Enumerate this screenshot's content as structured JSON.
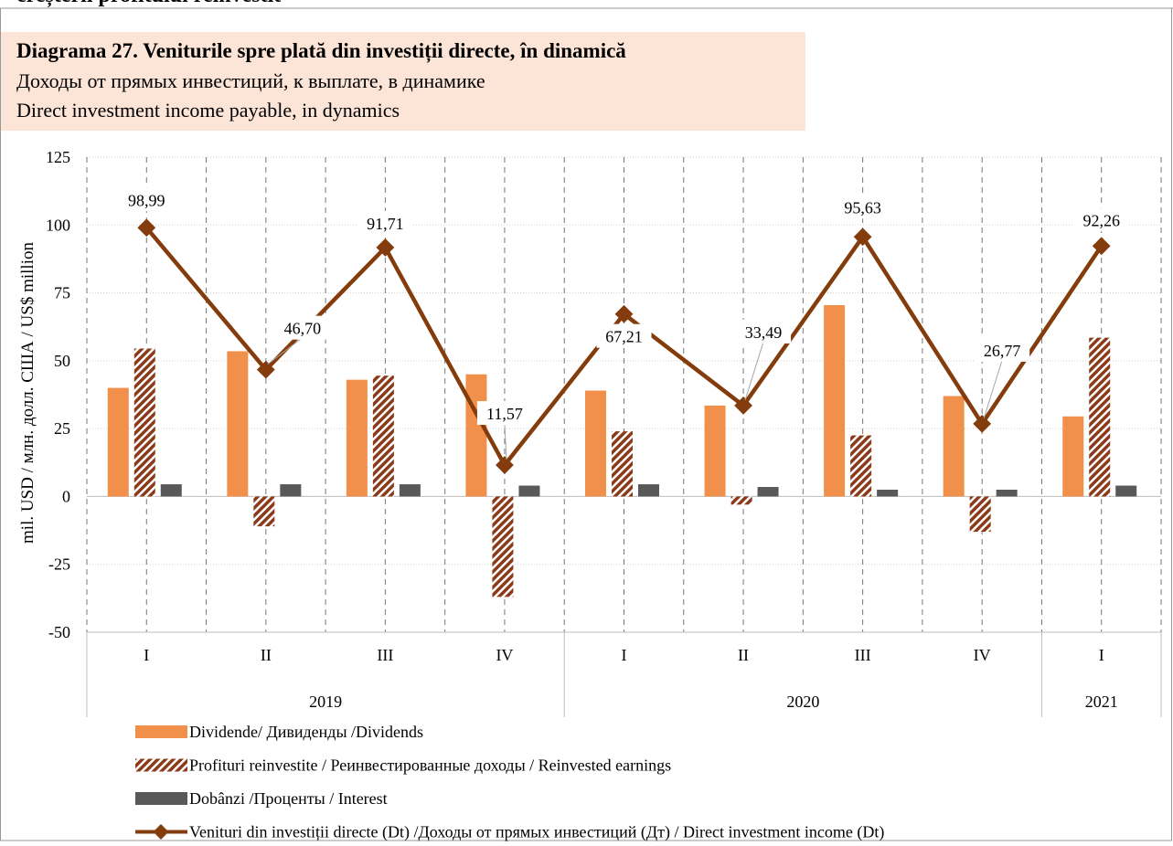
{
  "header_fragment": "creșterii profitului reinvestit",
  "chart_data": {
    "type": "bar_line",
    "title": "Diagrama 27. Veniturile spre plată din investiții directe, în dinamică",
    "subtitles": [
      "Доходы от прямых инвестиций, к выплате, в динамике",
      "Direct investment income payable, in dynamics"
    ],
    "y_label": "mil. USD / млн. долл. США / US$ million",
    "categories": [
      "I",
      "II",
      "III",
      "IV",
      "I",
      "II",
      "III",
      "IV",
      "I"
    ],
    "year_groups": [
      {
        "label": "2019",
        "count": 4
      },
      {
        "label": "2020",
        "count": 4
      },
      {
        "label": "2021",
        "count": 1
      }
    ],
    "ylim": [
      -50,
      125
    ],
    "yticks": [
      -50,
      -25,
      0,
      25,
      50,
      75,
      100,
      125
    ],
    "grid": true,
    "series": [
      {
        "name": "Dividende/ Дивиденды /Dividends",
        "kind": "bar",
        "color": "#f0904a",
        "values": [
          40,
          53.5,
          43,
          45,
          39,
          33.5,
          70.5,
          37,
          29.5
        ]
      },
      {
        "name": "Profituri reinvestite / Реинвестированные доходы / Reinvested earnings",
        "kind": "bar",
        "pattern": "hatch",
        "color": "#8b3a1a",
        "values": [
          54.5,
          -11,
          44.5,
          -37,
          24,
          -3,
          22.5,
          -13,
          58.5
        ]
      },
      {
        "name": "Dobânzi /Проценты / Interest",
        "kind": "bar",
        "color": "#595959",
        "values": [
          4.5,
          4.5,
          4.5,
          4,
          4.5,
          3.5,
          2.5,
          2.5,
          4
        ]
      },
      {
        "name": "Venituri din investiții directe (Dt)  /Доходы от прямых инвестиций (Дт) / Direct investment income (Dt)",
        "kind": "line",
        "color": "#843c0c",
        "values": [
          98.99,
          46.7,
          91.71,
          11.57,
          67.21,
          33.49,
          95.63,
          26.77,
          92.26
        ],
        "value_labels": [
          "98,99",
          "46,70",
          "91,71",
          "11,57",
          "67,21",
          "33,49",
          "95,63",
          "26,77",
          "92,26"
        ]
      }
    ]
  }
}
